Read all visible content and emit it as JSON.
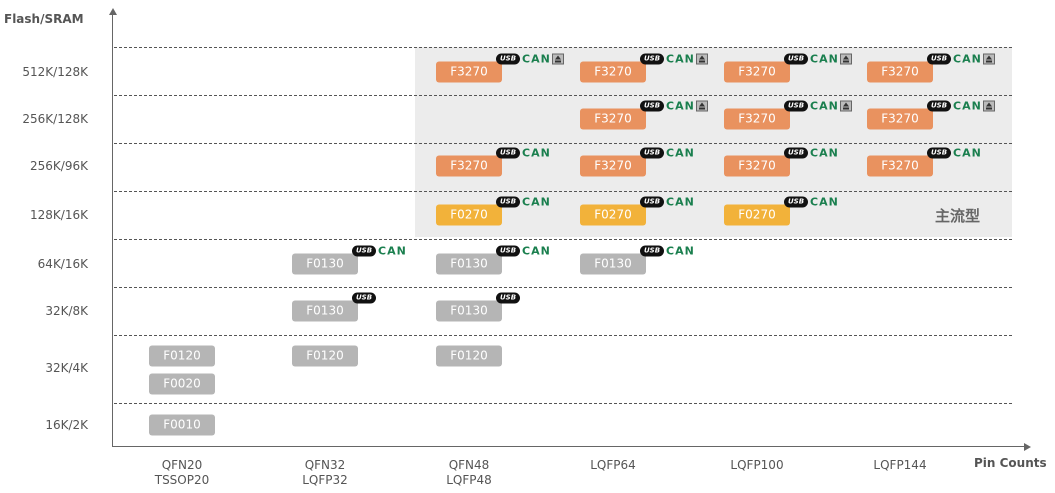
{
  "axis": {
    "y_title": "Flash/SRAM",
    "x_title": "Pin Counts"
  },
  "rows": [
    "512K/128K",
    "256K/128K",
    "256K/96K",
    "128K/16K",
    "64K/16K",
    "32K/8K",
    "32K/4K",
    "16K/2K"
  ],
  "columns": [
    [
      "QFN20",
      "TSSOP20"
    ],
    [
      "QFN32",
      "LQFP32"
    ],
    [
      "QFN48",
      "LQFP48"
    ],
    [
      "LQFP64",
      ""
    ],
    [
      "LQFP100",
      ""
    ],
    [
      "LQFP144",
      ""
    ]
  ],
  "mainstream_label": "主流型",
  "colors": {
    "orange": "#e9925f",
    "yellow": "#f2b23a",
    "gray": "#b5b5b5",
    "can": "#1a7f4e",
    "shade": "#ececec"
  },
  "badges": {
    "usb": "USB",
    "can": "CAN"
  },
  "chips": [
    {
      "row": 0,
      "col": 2,
      "label": "F3270",
      "color": "orange",
      "usb": true,
      "can": true,
      "eth": true
    },
    {
      "row": 0,
      "col": 3,
      "label": "F3270",
      "color": "orange",
      "usb": true,
      "can": true,
      "eth": true
    },
    {
      "row": 0,
      "col": 4,
      "label": "F3270",
      "color": "orange",
      "usb": true,
      "can": true,
      "eth": true
    },
    {
      "row": 0,
      "col": 5,
      "label": "F3270",
      "color": "orange",
      "usb": true,
      "can": true,
      "eth": true
    },
    {
      "row": 1,
      "col": 3,
      "label": "F3270",
      "color": "orange",
      "usb": true,
      "can": true,
      "eth": true
    },
    {
      "row": 1,
      "col": 4,
      "label": "F3270",
      "color": "orange",
      "usb": true,
      "can": true,
      "eth": true
    },
    {
      "row": 1,
      "col": 5,
      "label": "F3270",
      "color": "orange",
      "usb": true,
      "can": true,
      "eth": true
    },
    {
      "row": 2,
      "col": 2,
      "label": "F3270",
      "color": "orange",
      "usb": true,
      "can": true
    },
    {
      "row": 2,
      "col": 3,
      "label": "F3270",
      "color": "orange",
      "usb": true,
      "can": true
    },
    {
      "row": 2,
      "col": 4,
      "label": "F3270",
      "color": "orange",
      "usb": true,
      "can": true
    },
    {
      "row": 2,
      "col": 5,
      "label": "F3270",
      "color": "orange",
      "usb": true,
      "can": true
    },
    {
      "row": 3,
      "col": 2,
      "label": "F0270",
      "color": "yellow",
      "usb": true,
      "can": true
    },
    {
      "row": 3,
      "col": 3,
      "label": "F0270",
      "color": "yellow",
      "usb": true,
      "can": true
    },
    {
      "row": 3,
      "col": 4,
      "label": "F0270",
      "color": "yellow",
      "usb": true,
      "can": true
    },
    {
      "row": 4,
      "col": 1,
      "label": "F0130",
      "color": "gray",
      "usb": true,
      "can": true
    },
    {
      "row": 4,
      "col": 2,
      "label": "F0130",
      "color": "gray",
      "usb": true,
      "can": true
    },
    {
      "row": 4,
      "col": 3,
      "label": "F0130",
      "color": "gray",
      "usb": true,
      "can": true
    },
    {
      "row": 5,
      "col": 1,
      "label": "F0130",
      "color": "gray",
      "usb": true
    },
    {
      "row": 5,
      "col": 2,
      "label": "F0130",
      "color": "gray",
      "usb": true
    },
    {
      "row": 6,
      "col": 0,
      "label": "F0120",
      "color": "gray",
      "slot": 0
    },
    {
      "row": 6,
      "col": 0,
      "label": "F0020",
      "color": "gray",
      "slot": 1
    },
    {
      "row": 6,
      "col": 1,
      "label": "F0120",
      "color": "gray",
      "slot": 0
    },
    {
      "row": 6,
      "col": 2,
      "label": "F0120",
      "color": "gray",
      "slot": 0
    },
    {
      "row": 7,
      "col": 0,
      "label": "F0010",
      "color": "gray"
    }
  ]
}
